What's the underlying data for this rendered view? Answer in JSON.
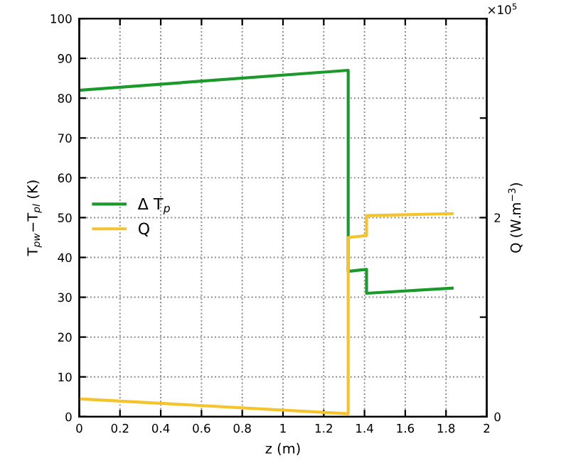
{
  "chart_data": {
    "type": "line",
    "xlabel": "z (m)",
    "ylabel": "T$_{pw}$−T$_{pl}$ (K)",
    "y2label": "Q (W.m$^{−3}$)",
    "xlim": [
      0,
      2
    ],
    "xticks": [
      0,
      0.2,
      0.4,
      0.6,
      0.8,
      1,
      1.2,
      1.4,
      1.6,
      1.8,
      2
    ],
    "ylim": [
      0,
      100
    ],
    "yticks": [
      0,
      10,
      20,
      30,
      40,
      50,
      60,
      70,
      80,
      90,
      100
    ],
    "y2lim": [
      0,
      4
    ],
    "y2ticks": [
      0,
      {
        "value": 1,
        "label": null
      },
      2,
      {
        "value": 3,
        "label": null
      },
      {
        "value": 4,
        "label": null
      }
    ],
    "grid": true,
    "legend": "left",
    "marker": "none",
    "line_style": "solid",
    "annotations": [
      "×10$^{5}$"
    ],
    "series": [
      {
        "name": "Δ T$_{p}$",
        "color": "#1a9a2a",
        "x": [
          0,
          1.32,
          1.32,
          1.41,
          1.41,
          1.83
        ],
        "values": [
          82,
          87,
          36.5,
          37,
          31,
          32.3
        ]
      },
      {
        "name": "Q",
        "color": "#f5c32c",
        "axis": "y2",
        "x": [
          0,
          1.32,
          1.32,
          1.41,
          1.41,
          1.83
        ],
        "values": [
          0.18,
          0.03,
          1.8,
          1.82,
          2.02,
          2.04
        ]
      }
    ]
  }
}
